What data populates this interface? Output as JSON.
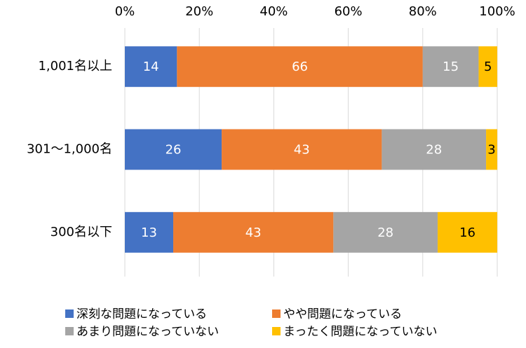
{
  "chart_data": {
    "type": "stacked-bar-horizontal",
    "categories": [
      "1,001名以上",
      "301～1,000名",
      "300名以下"
    ],
    "series": [
      {
        "name": "深刻な問題になっている",
        "color": "#4472c4",
        "label_color": "#ffffff",
        "values": [
          14,
          26,
          13
        ]
      },
      {
        "name": "やや問題になっている",
        "color": "#ed7d31",
        "label_color": "#ffffff",
        "values": [
          66,
          43,
          43
        ]
      },
      {
        "name": "あまり問題になっていない",
        "color": "#a5a5a5",
        "label_color": "#ffffff",
        "values": [
          15,
          28,
          28
        ]
      },
      {
        "name": "まったく問題になっていない",
        "color": "#ffc000",
        "label_color": "#000000",
        "values": [
          5,
          3,
          16
        ]
      }
    ],
    "xlim": [
      0,
      100
    ],
    "xticks": [
      {
        "value": 0,
        "label": "0%"
      },
      {
        "value": 20,
        "label": "20%"
      },
      {
        "value": 40,
        "label": "40%"
      },
      {
        "value": 60,
        "label": "60%"
      },
      {
        "value": 80,
        "label": "80%"
      },
      {
        "value": 100,
        "label": "100%"
      }
    ],
    "grid": true
  }
}
